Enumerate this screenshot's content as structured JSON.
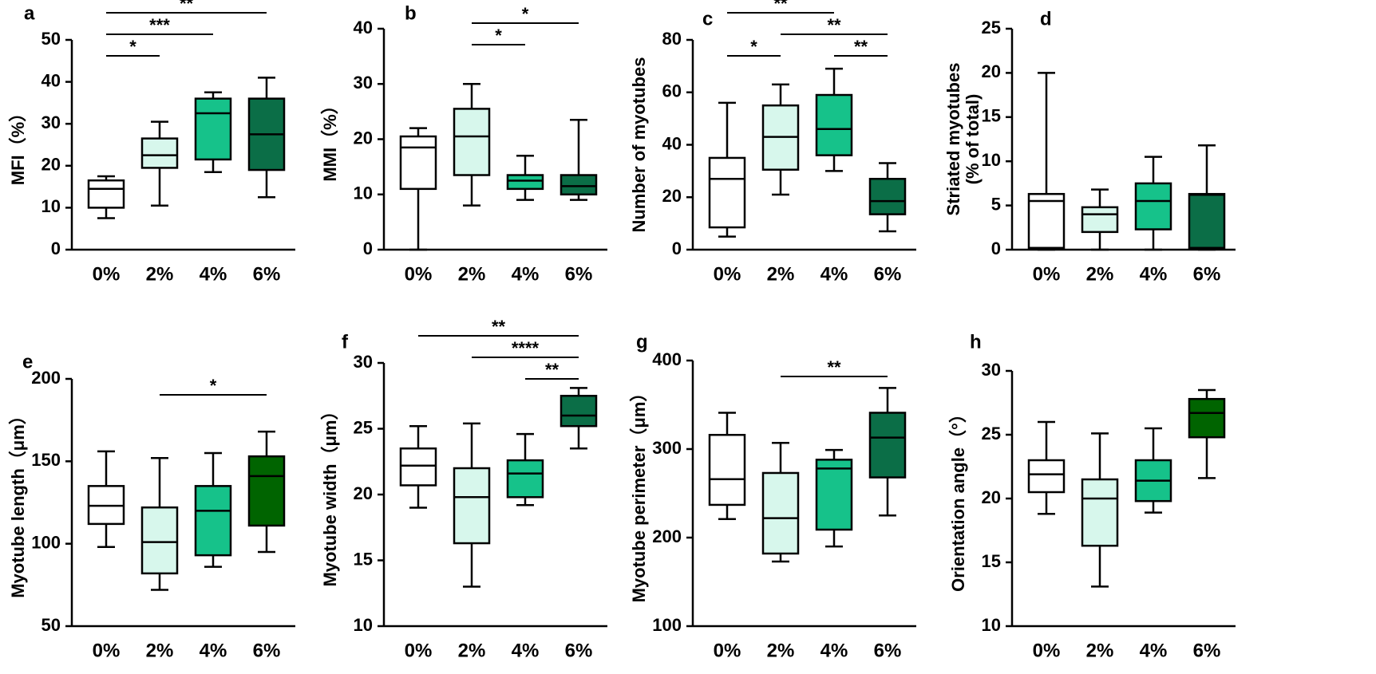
{
  "chart_data": [
    {
      "type": "box",
      "panel": "a",
      "ylabel": "MFI（%）",
      "categories": [
        "0%",
        "2%",
        "4%",
        "6%"
      ],
      "ylim": [
        0,
        50
      ],
      "yticks": [
        0,
        10,
        20,
        30,
        40,
        50
      ],
      "boxes": [
        {
          "color": "#ffffff",
          "min": 7.5,
          "q1": 10,
          "median": 14.5,
          "q3": 16.5,
          "max": 17.5
        },
        {
          "color": "#d7f7ec",
          "min": 10.5,
          "q1": 19.5,
          "median": 22.5,
          "q3": 26.5,
          "max": 30.5
        },
        {
          "color": "#16c28a",
          "min": 18.5,
          "q1": 21.5,
          "median": 32.5,
          "q3": 36,
          "max": 37.5
        },
        {
          "color": "#0b6e47",
          "min": 12.5,
          "q1": 19,
          "median": 27.5,
          "q3": 36,
          "max": 41
        }
      ],
      "significance": [
        {
          "from": 0,
          "to": 1,
          "label": "*"
        },
        {
          "from": 0,
          "to": 2,
          "label": "***"
        },
        {
          "from": 0,
          "to": 3,
          "label": "**"
        }
      ]
    },
    {
      "type": "box",
      "panel": "b",
      "ylabel": "MMI（%）",
      "categories": [
        "0%",
        "2%",
        "4%",
        "6%"
      ],
      "ylim": [
        0,
        40
      ],
      "yticks": [
        0,
        10,
        20,
        30,
        40
      ],
      "boxes": [
        {
          "color": "#ffffff",
          "min": 0,
          "q1": 11,
          "median": 18.5,
          "q3": 20.5,
          "max": 22
        },
        {
          "color": "#d7f7ec",
          "min": 8,
          "q1": 13.5,
          "median": 20.5,
          "q3": 25.5,
          "max": 30
        },
        {
          "color": "#16c28a",
          "min": 9,
          "q1": 11,
          "median": 12.5,
          "q3": 13.5,
          "max": 17
        },
        {
          "color": "#0b6e47",
          "min": 9,
          "q1": 10,
          "median": 11.5,
          "q3": 13.5,
          "max": 23.5
        }
      ],
      "significance": [
        {
          "from": 1,
          "to": 2,
          "label": "*"
        },
        {
          "from": 1,
          "to": 3,
          "label": "*"
        }
      ]
    },
    {
      "type": "box",
      "panel": "c",
      "ylabel": "Number of myotubes",
      "categories": [
        "0%",
        "2%",
        "4%",
        "6%"
      ],
      "ylim": [
        0,
        80
      ],
      "yticks": [
        0,
        20,
        40,
        60,
        80
      ],
      "boxes": [
        {
          "color": "#ffffff",
          "min": 5,
          "q1": 8.5,
          "median": 27,
          "q3": 35,
          "max": 56
        },
        {
          "color": "#d7f7ec",
          "min": 21,
          "q1": 30.5,
          "median": 43,
          "q3": 55,
          "max": 63
        },
        {
          "color": "#16c28a",
          "min": 30,
          "q1": 36,
          "median": 46,
          "q3": 59,
          "max": 69
        },
        {
          "color": "#0b6e47",
          "min": 7,
          "q1": 13.5,
          "median": 18.5,
          "q3": 27,
          "max": 33
        }
      ],
      "significance": [
        {
          "from": 0,
          "to": 1,
          "label": "*"
        },
        {
          "from": 2,
          "to": 3,
          "label": "**"
        },
        {
          "from": 1,
          "to": 3,
          "label": "**"
        },
        {
          "from": 0,
          "to": 2,
          "label": "**"
        }
      ]
    },
    {
      "type": "box",
      "panel": "d",
      "ylabel": [
        "Striated myotubes",
        "(% of total)"
      ],
      "categories": [
        "0%",
        "2%",
        "4%",
        "6%"
      ],
      "ylim": [
        0,
        25
      ],
      "yticks": [
        0,
        5,
        10,
        15,
        20,
        25
      ],
      "boxes": [
        {
          "color": "#ffffff",
          "min": 0,
          "q1": 0.2,
          "median": 5.5,
          "q3": 6.3,
          "max": 20
        },
        {
          "color": "#d7f7ec",
          "min": 0,
          "q1": 2,
          "median": 4,
          "q3": 4.8,
          "max": 6.8
        },
        {
          "color": "#16c28a",
          "min": 0,
          "q1": 2.3,
          "median": 5.5,
          "q3": 7.5,
          "max": 10.5
        },
        {
          "color": "#0b6e47",
          "min": 0,
          "q1": 0.2,
          "median": 6.2,
          "q3": 6.3,
          "max": 11.8
        }
      ],
      "significance": []
    },
    {
      "type": "box",
      "panel": "e",
      "ylabel": "Myotube length（μm）",
      "categories": [
        "0%",
        "2%",
        "4%",
        "6%"
      ],
      "ylim": [
        50,
        200
      ],
      "yticks": [
        50,
        100,
        150,
        200
      ],
      "boxes": [
        {
          "color": "#ffffff",
          "min": 98,
          "q1": 112,
          "median": 123,
          "q3": 135,
          "max": 156
        },
        {
          "color": "#d7f7ec",
          "min": 72,
          "q1": 82,
          "median": 101,
          "q3": 122,
          "max": 152
        },
        {
          "color": "#16c28a",
          "min": 86,
          "q1": 93,
          "median": 120,
          "q3": 135,
          "max": 155
        },
        {
          "color": "#006400",
          "min": 95,
          "q1": 111,
          "median": 141,
          "q3": 153,
          "max": 168
        }
      ],
      "significance": [
        {
          "from": 1,
          "to": 3,
          "label": "*"
        }
      ]
    },
    {
      "type": "box",
      "panel": "f",
      "ylabel": "Myotube width（μm）",
      "categories": [
        "0%",
        "2%",
        "4%",
        "6%"
      ],
      "ylim": [
        10,
        30
      ],
      "yticks": [
        10,
        15,
        20,
        25,
        30
      ],
      "boxes": [
        {
          "color": "#ffffff",
          "min": 19,
          "q1": 20.7,
          "median": 22.2,
          "q3": 23.5,
          "max": 25.2
        },
        {
          "color": "#d7f7ec",
          "min": 13,
          "q1": 16.3,
          "median": 19.8,
          "q3": 22,
          "max": 25.4
        },
        {
          "color": "#16c28a",
          "min": 19.2,
          "q1": 19.8,
          "median": 21.6,
          "q3": 22.6,
          "max": 24.6
        },
        {
          "color": "#0b6e47",
          "min": 23.5,
          "q1": 25.2,
          "median": 26,
          "q3": 27.5,
          "max": 28.1
        }
      ],
      "significance": [
        {
          "from": 2,
          "to": 3,
          "label": "**"
        },
        {
          "from": 1,
          "to": 3,
          "label": "****"
        },
        {
          "from": 0,
          "to": 3,
          "label": "**"
        }
      ]
    },
    {
      "type": "box",
      "panel": "g",
      "ylabel": "Myotube perimeter（μm）",
      "categories": [
        "0%",
        "2%",
        "4%",
        "6%"
      ],
      "ylim": [
        100,
        400
      ],
      "yticks": [
        100,
        200,
        300,
        400
      ],
      "boxes": [
        {
          "color": "#ffffff",
          "min": 221,
          "q1": 237,
          "median": 266,
          "q3": 316,
          "max": 341
        },
        {
          "color": "#d7f7ec",
          "min": 173,
          "q1": 182,
          "median": 222,
          "q3": 273,
          "max": 307
        },
        {
          "color": "#16c28a",
          "min": 190,
          "q1": 209,
          "median": 278,
          "q3": 288,
          "max": 299
        },
        {
          "color": "#0b6e47",
          "min": 225,
          "q1": 268,
          "median": 313,
          "q3": 341,
          "max": 369
        }
      ],
      "significance": [
        {
          "from": 1,
          "to": 3,
          "label": "**"
        }
      ]
    },
    {
      "type": "box",
      "panel": "h",
      "ylabel": "Orientation angle（°）",
      "categories": [
        "0%",
        "2%",
        "4%",
        "6%"
      ],
      "ylim": [
        10,
        30
      ],
      "yticks": [
        10,
        15,
        20,
        25,
        30
      ],
      "boxes": [
        {
          "color": "#ffffff",
          "min": 18.8,
          "q1": 20.5,
          "median": 21.9,
          "q3": 23,
          "max": 26
        },
        {
          "color": "#d7f7ec",
          "min": 13.1,
          "q1": 16.3,
          "median": 20,
          "q3": 21.5,
          "max": 25.1
        },
        {
          "color": "#16c28a",
          "min": 18.9,
          "q1": 19.8,
          "median": 21.4,
          "q3": 23,
          "max": 25.5
        },
        {
          "color": "#006400",
          "min": 21.6,
          "q1": 24.8,
          "median": 26.7,
          "q3": 27.8,
          "max": 28.5
        }
      ],
      "significance": []
    }
  ]
}
